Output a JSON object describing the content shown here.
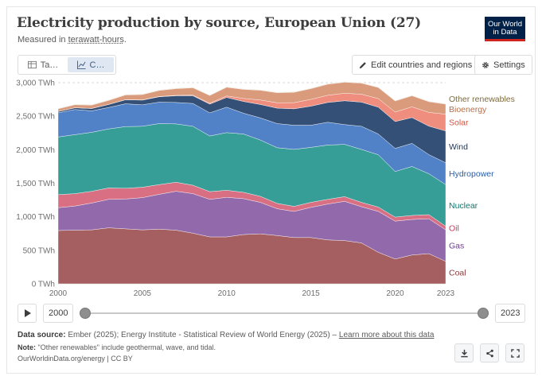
{
  "header": {
    "title": "Electricity production by source, European Union (27)",
    "subtitle_prefix": "Measured in ",
    "subtitle_link": "terawatt-hours",
    "subtitle_suffix": ".",
    "logo_line1": "Our World",
    "logo_line2": "in Data"
  },
  "tabs": [
    {
      "label": "Ta…",
      "icon": "table-icon",
      "active": false
    },
    {
      "label": "C…",
      "icon": "chart-icon",
      "active": true
    }
  ],
  "controls": {
    "edit_label": "Edit countries and regions",
    "settings_label": "Settings"
  },
  "timeline": {
    "start_year": "2000",
    "end_year": "2023",
    "start_value": 2000,
    "end_value": 2023
  },
  "footer": {
    "source_label": "Data source:",
    "source_text": "Ember (2025); Energy Institute - Statistical Review of World Energy (2025) –",
    "source_link": "Learn more about this data",
    "note_label": "Note:",
    "note_text": "\"Other renewables\" include geothermal, wave, and tidal.",
    "url_text": "OurWorldinData.org/energy | CC BY"
  },
  "colors": {
    "Coal": "#a35a5b",
    "Gas": "#8e64a8",
    "Oil": "#d86a7e",
    "Nuclear": "#2f9b93",
    "Hydropower": "#4b7dc4",
    "Wind": "#2e4a73",
    "Solar": "#ee8a7a",
    "Bioenergy": "#d89877",
    "Other renewables": "#bea27b"
  },
  "label_colors": {
    "Coal": "#8a3b3c",
    "Gas": "#6d3e91",
    "Oil": "#c43e5d",
    "Nuclear": "#11756c",
    "Hydropower": "#2a5ea5",
    "Wind": "#1d3556",
    "Solar": "#d8523e",
    "Bioenergy": "#b56e46",
    "Other renewables": "#7d6b3e"
  },
  "chart_data": {
    "type": "area",
    "title": "Electricity production by source, European Union (27)",
    "stacked": true,
    "x": [
      2000,
      2001,
      2002,
      2003,
      2004,
      2005,
      2006,
      2007,
      2008,
      2009,
      2010,
      2011,
      2012,
      2013,
      2014,
      2015,
      2016,
      2017,
      2018,
      2019,
      2020,
      2021,
      2022,
      2023
    ],
    "series": [
      {
        "name": "Coal",
        "values": [
          795,
          800,
          805,
          835,
          820,
          805,
          815,
          800,
          755,
          700,
          700,
          735,
          745,
          720,
          690,
          690,
          655,
          645,
          610,
          470,
          370,
          430,
          450,
          335
        ]
      },
      {
        "name": "Gas",
        "values": [
          340,
          360,
          400,
          425,
          445,
          480,
          520,
          580,
          590,
          560,
          590,
          535,
          470,
          400,
          390,
          450,
          535,
          585,
          540,
          610,
          565,
          530,
          520,
          470
        ]
      },
      {
        "name": "Oil",
        "values": [
          195,
          185,
          175,
          170,
          160,
          155,
          145,
          135,
          125,
          115,
          105,
          95,
          90,
          80,
          75,
          75,
          70,
          70,
          65,
          65,
          60,
          60,
          62,
          55
        ]
      },
      {
        "name": "Nuclear",
        "values": [
          860,
          880,
          880,
          880,
          920,
          910,
          910,
          870,
          880,
          830,
          860,
          870,
          840,
          830,
          850,
          820,
          810,
          780,
          790,
          780,
          680,
          730,
          610,
          620
        ]
      },
      {
        "name": "Hydropower",
        "values": [
          360,
          375,
          320,
          320,
          340,
          320,
          320,
          320,
          340,
          345,
          380,
          310,
          330,
          360,
          360,
          330,
          340,
          295,
          345,
          310,
          345,
          345,
          285,
          325
        ]
      },
      {
        "name": "Wind",
        "values": [
          20,
          25,
          35,
          45,
          60,
          70,
          80,
          100,
          115,
          130,
          145,
          175,
          200,
          230,
          245,
          285,
          295,
          355,
          360,
          400,
          400,
          385,
          425,
          475
        ]
      },
      {
        "name": "Solar",
        "values": [
          0,
          1,
          1,
          1,
          2,
          3,
          4,
          6,
          9,
          14,
          22,
          45,
          67,
          80,
          92,
          101,
          107,
          112,
          118,
          128,
          142,
          160,
          205,
          250
        ]
      },
      {
        "name": "Bioenergy",
        "values": [
          40,
          45,
          50,
          60,
          70,
          80,
          90,
          100,
          110,
          115,
          130,
          135,
          145,
          150,
          155,
          160,
          165,
          165,
          165,
          165,
          165,
          165,
          160,
          150
        ]
      },
      {
        "name": "Other renewables",
        "values": [
          6,
          6,
          6,
          6,
          6,
          6,
          6,
          6,
          6,
          6,
          6,
          6,
          6,
          6,
          6,
          6,
          6,
          6,
          6,
          6,
          6,
          6,
          6,
          6
        ]
      }
    ],
    "ylabel": "",
    "yticks": [
      0,
      500,
      1000,
      1500,
      2000,
      2500,
      3000
    ],
    "ytick_labels": [
      "0 TWh",
      "500 TWh",
      "1,000 TWh",
      "1,500 TWh",
      "2,000 TWh",
      "2,500 TWh",
      "3,000 TWh"
    ],
    "xticks": [
      2000,
      2005,
      2010,
      2015,
      2020,
      2023
    ],
    "ylim": [
      0,
      3000
    ],
    "xlim": [
      2000,
      2023
    ],
    "grid": "horizontal dashed",
    "legend": "right, inline labels"
  }
}
